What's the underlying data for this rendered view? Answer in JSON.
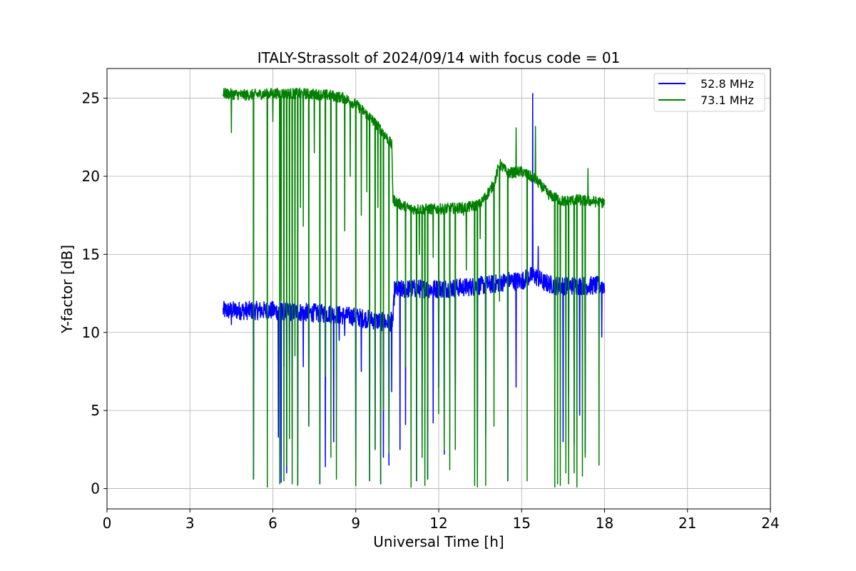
{
  "chart_data": {
    "type": "line",
    "title": "ITALY-Strassolt of 2024/09/14 with focus code = 01",
    "xlabel": "Universal Time [h]",
    "ylabel": "Y-factor [dB]",
    "xlim": [
      0,
      24
    ],
    "ylim": [
      -1.3,
      26.9
    ],
    "xticks": [
      0,
      3,
      6,
      9,
      12,
      15,
      18,
      21,
      24
    ],
    "yticks": [
      0,
      5,
      10,
      15,
      20,
      25
    ],
    "grid": true,
    "legend_position": "top-right",
    "series": [
      {
        "name": "52.8 MHz",
        "color": "#0000ff",
        "baseline": [
          [
            4.2,
            11.4
          ],
          [
            5.0,
            11.4
          ],
          [
            6.0,
            11.4
          ],
          [
            7.0,
            11.3
          ],
          [
            8.0,
            11.2
          ],
          [
            9.0,
            11.0
          ],
          [
            9.6,
            10.8
          ],
          [
            10.2,
            10.6
          ],
          [
            10.35,
            10.8
          ],
          [
            10.4,
            12.7
          ],
          [
            11.0,
            12.8
          ],
          [
            12.0,
            12.8
          ],
          [
            13.0,
            12.9
          ],
          [
            13.5,
            13.0
          ],
          [
            14.0,
            13.1
          ],
          [
            14.5,
            13.3
          ],
          [
            15.0,
            13.3
          ],
          [
            15.3,
            13.6
          ],
          [
            15.5,
            13.6
          ],
          [
            15.8,
            13.2
          ],
          [
            16.2,
            13.0
          ],
          [
            17.0,
            13.0
          ],
          [
            18.0,
            13.0
          ]
        ],
        "noise": 0.6,
        "spikes": [
          [
            4.5,
            10.5
          ],
          [
            5.3,
            0.6
          ],
          [
            6.2,
            3.3
          ],
          [
            6.3,
            0.4
          ],
          [
            6.4,
            7.8
          ],
          [
            6.5,
            1.0
          ],
          [
            6.6,
            7.2
          ],
          [
            6.7,
            3.2
          ],
          [
            6.9,
            0.3
          ],
          [
            7.1,
            7.8
          ],
          [
            7.3,
            4.0
          ],
          [
            7.7,
            0.3
          ],
          [
            7.9,
            1.4
          ],
          [
            8.2,
            3.0
          ],
          [
            8.4,
            9.5
          ],
          [
            8.6,
            9.8
          ],
          [
            9.0,
            0.2
          ],
          [
            9.2,
            7.5
          ],
          [
            9.5,
            0.5
          ],
          [
            9.7,
            2.5
          ],
          [
            9.9,
            0.3
          ],
          [
            10.0,
            2.0
          ],
          [
            10.2,
            1.5
          ],
          [
            10.3,
            6.2
          ],
          [
            10.6,
            2.5
          ],
          [
            10.8,
            4.1
          ],
          [
            11.2,
            0.5
          ],
          [
            11.4,
            2.0
          ],
          [
            11.6,
            0.6
          ],
          [
            11.8,
            4.2
          ],
          [
            12.0,
            6.5
          ],
          [
            12.2,
            2.2
          ],
          [
            12.4,
            9.3
          ],
          [
            12.6,
            4.5
          ],
          [
            13.4,
            1.0
          ],
          [
            13.7,
            3.5
          ],
          [
            14.5,
            0.5
          ],
          [
            14.8,
            6.5
          ],
          [
            15.4,
            25.3
          ],
          [
            15.6,
            15.5
          ],
          [
            16.2,
            7.8
          ],
          [
            16.5,
            3.0
          ],
          [
            16.7,
            6.0
          ],
          [
            16.9,
            2.8
          ],
          [
            17.1,
            4.7
          ],
          [
            17.3,
            2.3
          ],
          [
            17.9,
            9.7
          ]
        ]
      },
      {
        "name": "73.1 MHz",
        "color": "#008000",
        "baseline": [
          [
            4.2,
            25.3
          ],
          [
            5.0,
            25.2
          ],
          [
            6.0,
            25.3
          ],
          [
            7.0,
            25.3
          ],
          [
            8.0,
            25.2
          ],
          [
            8.6,
            25.0
          ],
          [
            9.0,
            24.6
          ],
          [
            9.5,
            23.8
          ],
          [
            10.0,
            22.8
          ],
          [
            10.3,
            22.0
          ],
          [
            10.35,
            18.5
          ],
          [
            10.6,
            18.2
          ],
          [
            11.0,
            17.9
          ],
          [
            12.0,
            17.9
          ],
          [
            13.0,
            18.0
          ],
          [
            13.5,
            18.2
          ],
          [
            14.0,
            19.5
          ],
          [
            14.2,
            20.8
          ],
          [
            14.5,
            20.2
          ],
          [
            15.0,
            20.3
          ],
          [
            15.5,
            19.8
          ],
          [
            16.0,
            18.8
          ],
          [
            16.5,
            18.4
          ],
          [
            17.0,
            18.5
          ],
          [
            17.5,
            18.4
          ],
          [
            18.0,
            18.3
          ]
        ],
        "noise": 0.35,
        "spikes": [
          [
            4.5,
            22.8
          ],
          [
            5.3,
            0.6
          ],
          [
            5.8,
            0.1
          ],
          [
            6.0,
            23.5
          ],
          [
            6.25,
            0.3
          ],
          [
            6.3,
            12.0
          ],
          [
            6.4,
            0.5
          ],
          [
            6.5,
            1.5
          ],
          [
            6.6,
            3.2
          ],
          [
            6.7,
            0.3
          ],
          [
            6.8,
            8.5
          ],
          [
            6.9,
            0.2
          ],
          [
            7.0,
            18.0
          ],
          [
            7.1,
            16.8
          ],
          [
            7.3,
            4.0
          ],
          [
            7.5,
            21.5
          ],
          [
            7.7,
            0.3
          ],
          [
            7.9,
            7.2
          ],
          [
            8.1,
            2.0
          ],
          [
            8.3,
            0.6
          ],
          [
            8.6,
            16.5
          ],
          [
            8.8,
            20.0
          ],
          [
            9.0,
            0.2
          ],
          [
            9.2,
            17.5
          ],
          [
            9.4,
            19.0
          ],
          [
            9.5,
            0.5
          ],
          [
            9.7,
            2.5
          ],
          [
            9.8,
            18.0
          ],
          [
            9.9,
            0.3
          ],
          [
            10.0,
            5.0
          ],
          [
            10.2,
            2.3
          ],
          [
            10.5,
            13.0
          ],
          [
            10.8,
            7.8
          ],
          [
            11.0,
            0.1
          ],
          [
            11.2,
            0.6
          ],
          [
            11.3,
            15.0
          ],
          [
            11.4,
            2.0
          ],
          [
            11.5,
            0.2
          ],
          [
            11.6,
            0.6
          ],
          [
            11.8,
            14.8
          ],
          [
            12.0,
            4.8
          ],
          [
            12.2,
            2.5
          ],
          [
            12.4,
            1.2
          ],
          [
            12.6,
            2.5
          ],
          [
            12.9,
            17.5
          ],
          [
            13.0,
            14.0
          ],
          [
            13.3,
            0.2
          ],
          [
            13.4,
            0.1
          ],
          [
            13.5,
            16.0
          ],
          [
            13.7,
            0.2
          ],
          [
            14.0,
            4.0
          ],
          [
            14.2,
            12.0
          ],
          [
            14.5,
            0.5
          ],
          [
            14.8,
            23.1
          ],
          [
            15.2,
            0.5
          ],
          [
            15.5,
            23.2
          ],
          [
            16.2,
            0.1
          ],
          [
            16.3,
            0.3
          ],
          [
            16.4,
            0.2
          ],
          [
            16.6,
            1.0
          ],
          [
            16.7,
            0.3
          ],
          [
            16.9,
            1.0
          ],
          [
            17.0,
            0.1
          ],
          [
            17.2,
            0.8
          ],
          [
            17.3,
            2.0
          ],
          [
            17.4,
            20.5
          ],
          [
            17.8,
            1.5
          ]
        ]
      }
    ]
  }
}
